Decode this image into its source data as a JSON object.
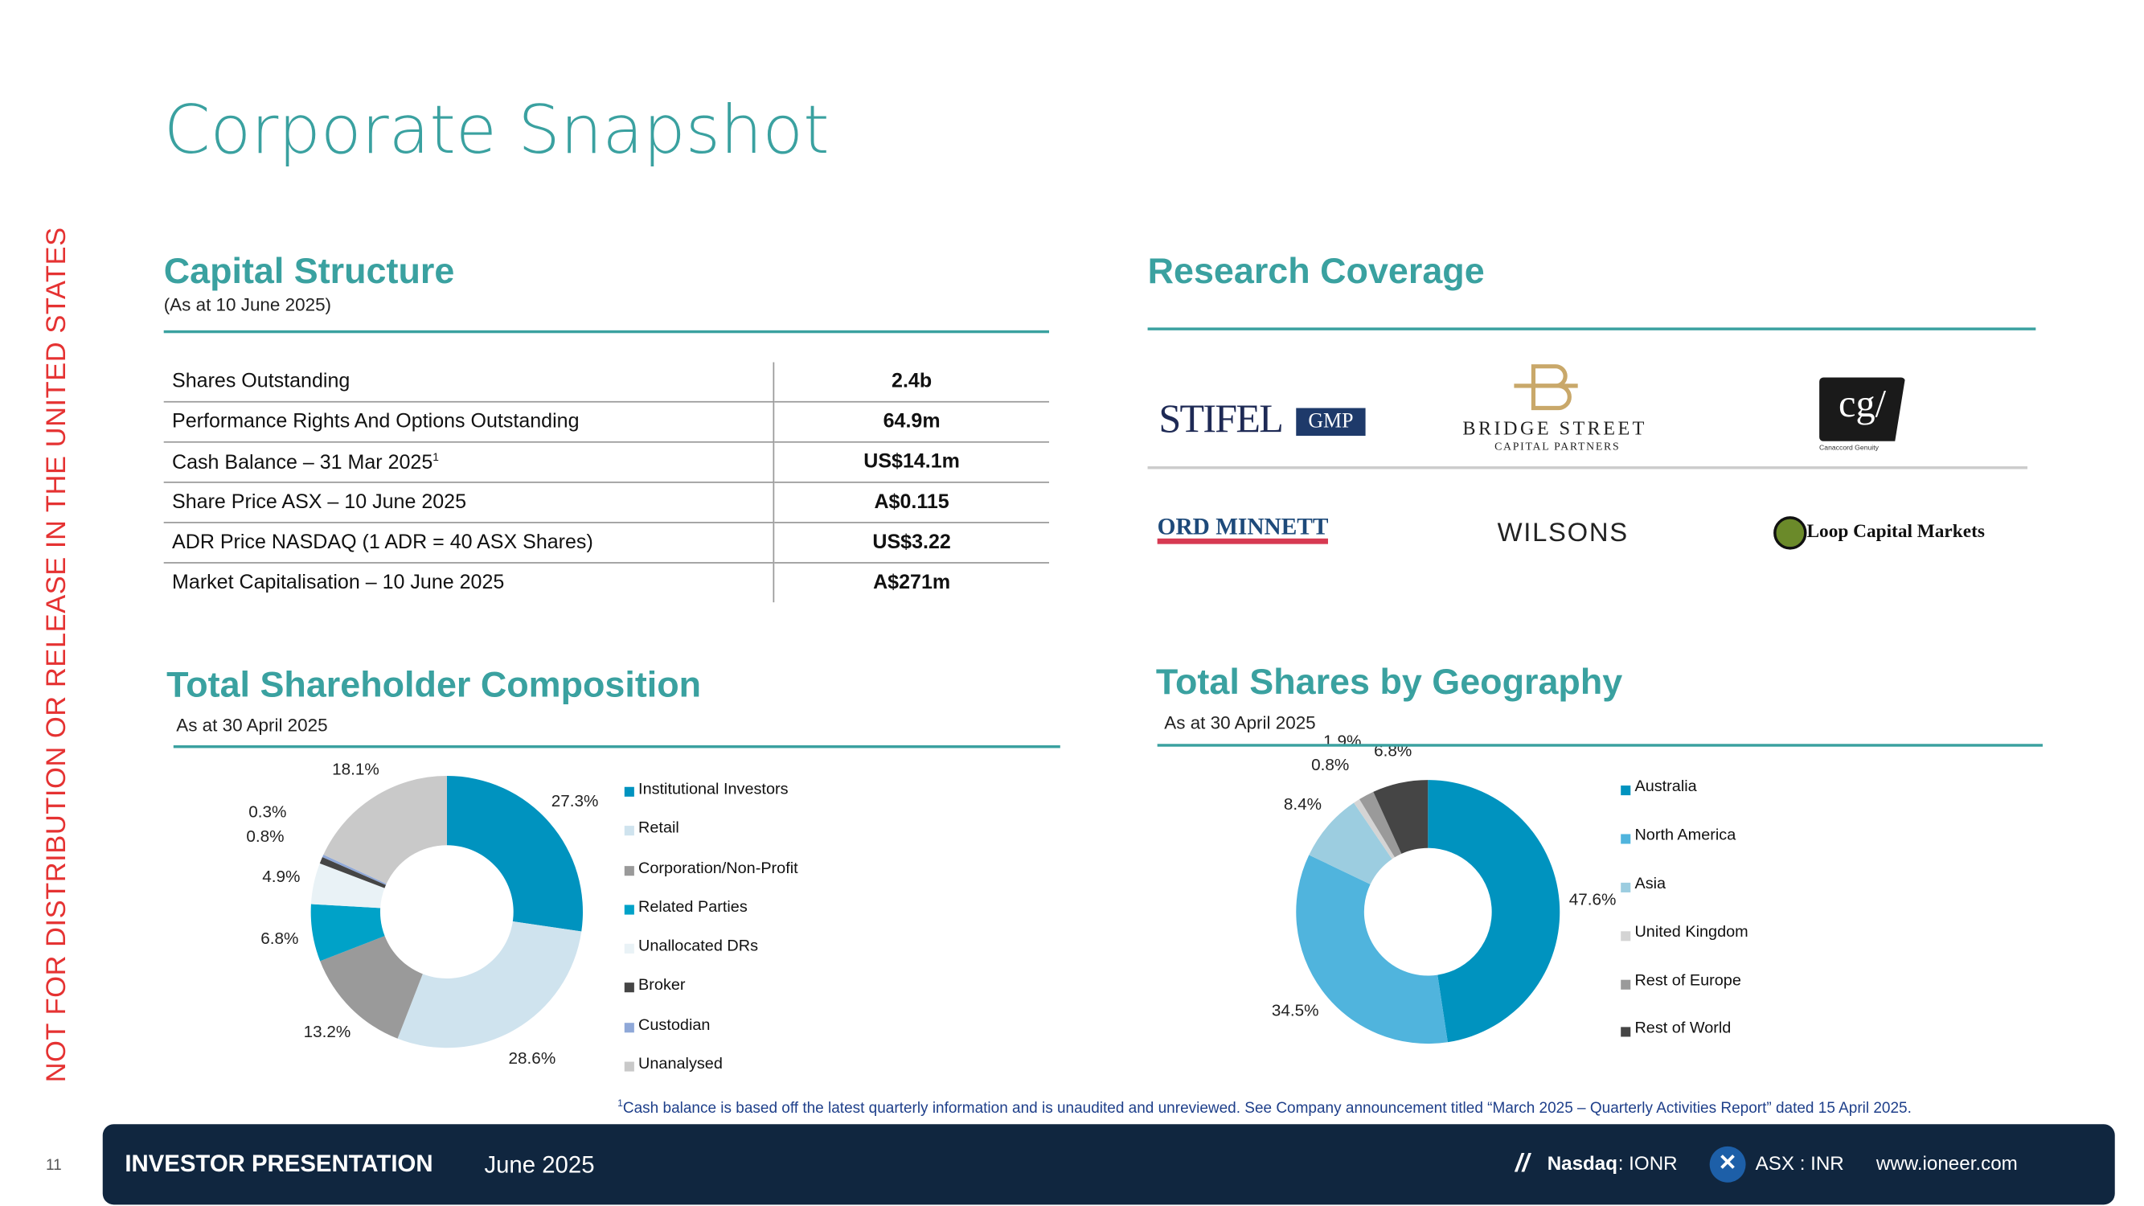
{
  "side_notice": "NOT FOR DISTRIBUTION OR RELEASE IN THE UNITED STATES",
  "title": "Corporate Snapshot",
  "capital": {
    "heading": "Capital Structure",
    "subtitle": "(As at 10 June 2025)",
    "rows": [
      {
        "label": "Shares Outstanding",
        "value": "2.4b"
      },
      {
        "label": "Performance Rights And Options Outstanding",
        "value": "64.9m"
      },
      {
        "label": "Cash Balance – 31 Mar 2025",
        "sup": "1",
        "value": "US$14.1m"
      },
      {
        "label": "Share Price ASX – 10 June 2025",
        "value": "A$0.115"
      },
      {
        "label": "ADR Price NASDAQ (1 ADR = 40 ASX Shares)",
        "value": "US$3.22"
      },
      {
        "label": "Market Capitalisation – 10 June 2025",
        "value": "A$271m"
      }
    ]
  },
  "research": {
    "heading": "Research Coverage",
    "logos": [
      "STIFEL",
      "GMP",
      "BRIDGE STREET",
      "CAPITAL PARTNERS",
      "cg/",
      "Canaccord Genuity",
      "ORD MINNETT",
      "WILSONS",
      "Loop Capital Markets"
    ]
  },
  "chart_data": [
    {
      "type": "pie",
      "title": "Total Shareholder Composition",
      "subtitle": "As at 30 April 2025",
      "legend": "right",
      "categories": [
        "Institutional Investors",
        "Retail",
        "Corporation/Non-Profit",
        "Related Parties",
        "Unallocated DRs",
        "Broker",
        "Custodian",
        "Unanalysed"
      ],
      "values": [
        27.3,
        28.6,
        13.2,
        6.8,
        4.9,
        0.8,
        0.3,
        18.1
      ],
      "colors": [
        "#0093bf",
        "#cfe3ee",
        "#9a9a9a",
        "#00a2c8",
        "#e9f2f6",
        "#454545",
        "#8fa8d8",
        "#c9c9c9"
      ]
    },
    {
      "type": "pie",
      "title": "Total Shares by Geography",
      "subtitle": "As at 30 April 2025",
      "legend": "right",
      "categories": [
        "Australia",
        "North America",
        "Asia",
        "United Kingdom",
        "Rest of Europe",
        "Rest of World"
      ],
      "values": [
        47.6,
        34.5,
        8.4,
        0.8,
        1.9,
        6.8
      ],
      "colors": [
        "#0093bf",
        "#50b4dd",
        "#9ccde0",
        "#d4d4d4",
        "#9a9a9a",
        "#454545"
      ]
    }
  ],
  "footnote": {
    "sup": "1",
    "text": "Cash balance is based off the latest quarterly information and is unaudited and unreviewed. See Company announcement titled “March 2025 – Quarterly Activities Report” dated 15 April 2025."
  },
  "footer": {
    "page": "11",
    "label": "INVESTOR PRESENTATION",
    "date": "June 2025",
    "nasdaq": "Nasdaq",
    "nasdaq_ticker": ": IONR",
    "asx": "ASX : INR",
    "url": "www.ioneer.com"
  }
}
